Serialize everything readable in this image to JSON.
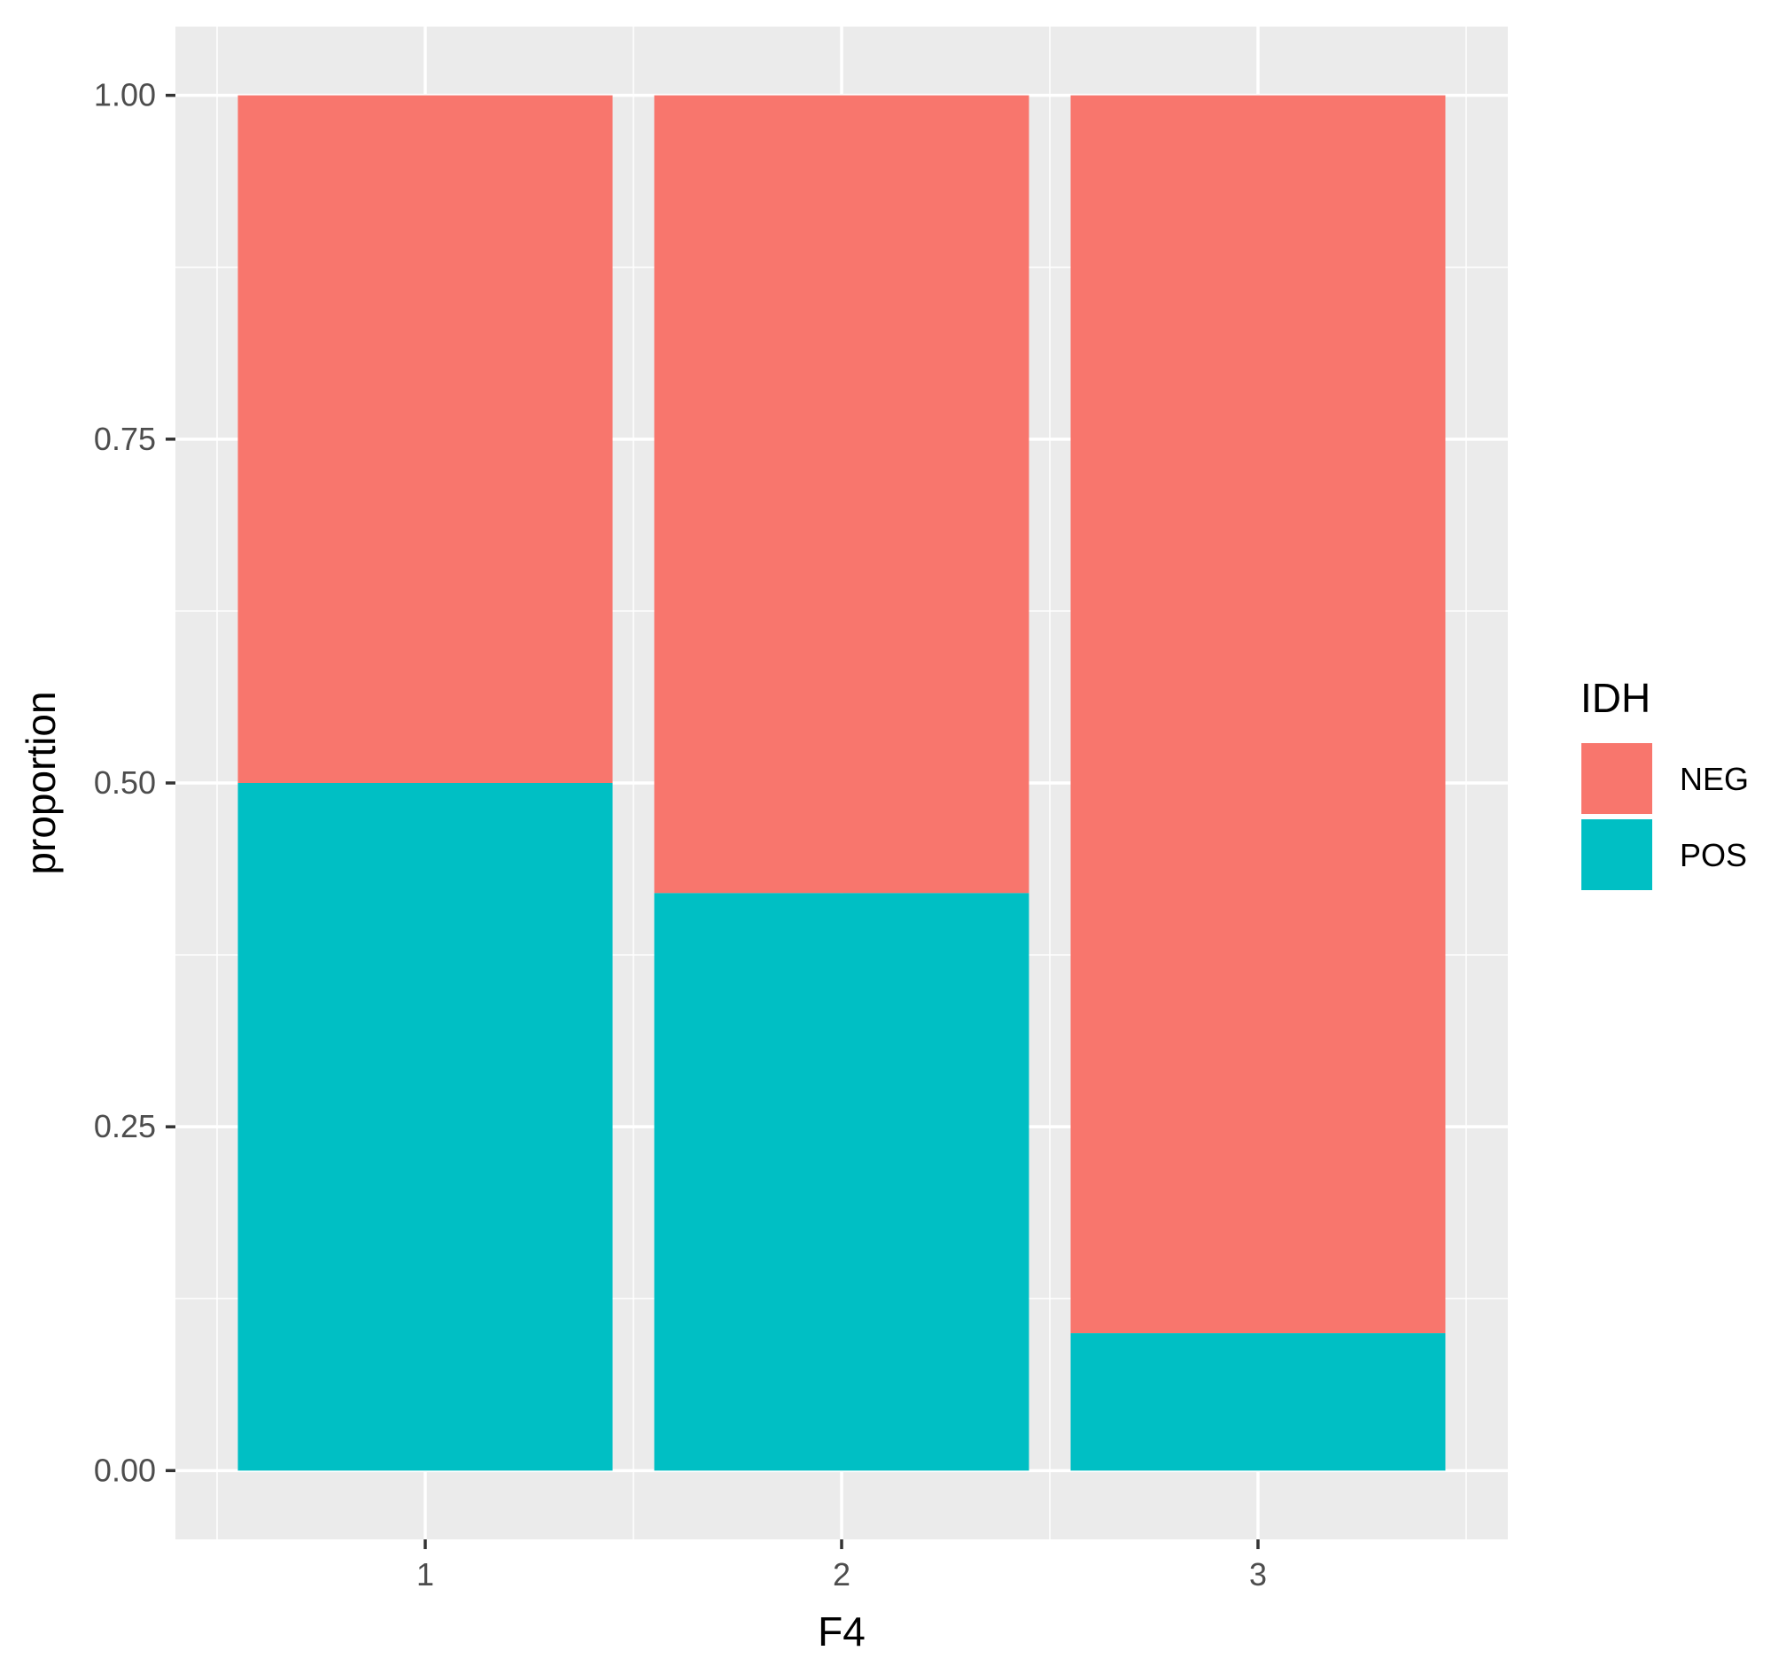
{
  "chart_data": {
    "type": "bar",
    "stacked": true,
    "categories": [
      "1",
      "2",
      "3"
    ],
    "series": [
      {
        "name": "NEG",
        "color": "#F8766D",
        "values": [
          0.5,
          0.58,
          0.9
        ]
      },
      {
        "name": "POS",
        "color": "#00BFC4",
        "values": [
          0.5,
          0.42,
          0.1
        ]
      }
    ],
    "xlabel": "F4",
    "ylabel": "proportion",
    "ylim": [
      -0.05,
      1.05
    ],
    "yticks": [
      0.0,
      0.25,
      0.5,
      0.75,
      1.0
    ],
    "ytick_labels": [
      "0.00",
      "0.25",
      "0.50",
      "0.75",
      "1.00"
    ],
    "grid": true,
    "legend": {
      "title": "IDH",
      "placement": "right",
      "entries": [
        "NEG",
        "POS"
      ]
    },
    "panel_background": "#EBEBEB",
    "grid_color": "#FFFFFF"
  }
}
